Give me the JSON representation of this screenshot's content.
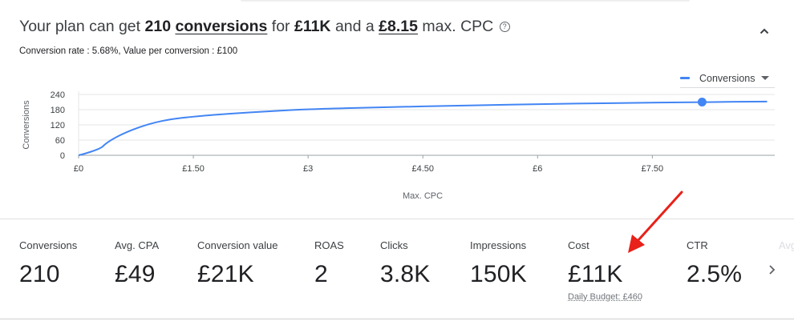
{
  "header": {
    "prefix": "Your plan can get",
    "conversions_count": "210",
    "conversions_word": "conversions",
    "for_word": "for",
    "cost": "£11K",
    "and_a": "and a",
    "max_cpc": "£8.15",
    "suffix": "max. CPC",
    "help_icon": "help-circle-icon",
    "help_glyph": "?",
    "collapse_icon": "chevron-up-icon",
    "sub": "Conversion rate : 5.68%, Value per conversion : £100"
  },
  "legend": {
    "label": "Conversions",
    "color": "#4285f4",
    "dropdown_icon": "caret-down-icon"
  },
  "chart_data": {
    "type": "line",
    "xlabel": "Max. CPC",
    "ylabel": "Conversions",
    "x_ticks": [
      0,
      1.5,
      3,
      4.5,
      6,
      7.5
    ],
    "x_tick_labels": [
      "£0",
      "£1.50",
      "£3",
      "£4.50",
      "£6",
      "£7.50"
    ],
    "xlim": [
      0,
      9.1
    ],
    "y_ticks": [
      0,
      60,
      120,
      180,
      240
    ],
    "ylim": [
      0,
      240
    ],
    "grid": true,
    "series": [
      {
        "name": "Conversions",
        "color": "#4285f4",
        "x": [
          0,
          0.1,
          0.2,
          0.3,
          0.35,
          0.45,
          0.6,
          0.8,
          1.0,
          1.2,
          1.5,
          2.0,
          2.5,
          3.0,
          4.0,
          5.0,
          6.0,
          7.0,
          8.15,
          9.0
        ],
        "y": [
          0,
          8,
          18,
          30,
          45,
          65,
          88,
          112,
          130,
          142,
          153,
          165,
          174,
          182,
          190,
          196,
          202,
          206,
          210,
          212
        ]
      }
    ],
    "highlight_point": {
      "x": 8.15,
      "y": 210
    }
  },
  "metrics": [
    {
      "label": "Conversions",
      "value": "210"
    },
    {
      "label": "Avg. CPA",
      "value": "£49"
    },
    {
      "label": "Conversion value",
      "value": "£21K"
    },
    {
      "label": "ROAS",
      "value": "2"
    },
    {
      "label": "Clicks",
      "value": "3.8K"
    },
    {
      "label": "Impressions",
      "value": "150K"
    },
    {
      "label": "Cost",
      "value": "£11K",
      "sub": "Daily Budget: £460"
    },
    {
      "label": "CTR",
      "value": "2.5%"
    },
    {
      "label": "Avg."
    }
  ],
  "next_icon": "chevron-right-icon",
  "annotation": {
    "type": "red-arrow-icon",
    "color": "#e8211a",
    "target": "cost-metric"
  }
}
